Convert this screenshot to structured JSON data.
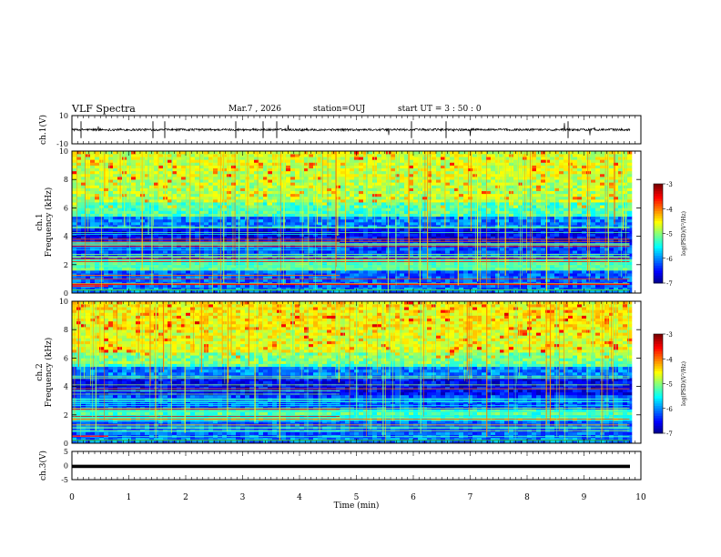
{
  "header": {
    "title": "VLF Spectra",
    "date": "Mar.7 , 2026",
    "station": "station=OUJ",
    "start_ut": "start UT =  3 : 50 : 0"
  },
  "chart_data": [
    {
      "type": "line",
      "name": "ch1-waveform",
      "ylabel": "ch.1(V)",
      "ylim": [
        -10,
        10
      ],
      "yticks": [
        "10",
        "-10"
      ],
      "xlim": [
        0,
        10
      ]
    },
    {
      "type": "heatmap",
      "name": "ch1-spectrogram",
      "ylabel_line1": "ch.1",
      "ylabel_line2": "Frequency (kHz)",
      "ylim": [
        0,
        10
      ],
      "yticks": [
        "0",
        "2",
        "4",
        "6",
        "8",
        "10"
      ],
      "xlim": [
        0,
        9.8
      ],
      "colorbar": {
        "label": "log(PSD)(V²/Hz)",
        "range": [
          -7,
          -3
        ],
        "ticks": [
          "-3",
          "-4",
          "-5",
          "-6",
          "-7"
        ]
      }
    },
    {
      "type": "heatmap",
      "name": "ch2-spectrogram",
      "ylabel_line1": "ch.2",
      "ylabel_line2": "Frequency (kHz)",
      "ylim": [
        0,
        10
      ],
      "yticks": [
        "0",
        "2",
        "4",
        "6",
        "8",
        "10"
      ],
      "xlim": [
        0,
        9.8
      ],
      "colorbar": {
        "label": "log(PSD)(V²/Hz)",
        "range": [
          -7,
          -3
        ],
        "ticks": [
          "-3",
          "-4",
          "-5",
          "-6",
          "-7"
        ]
      }
    },
    {
      "type": "line",
      "name": "ch3-waveform",
      "ylabel": "ch.3(V)",
      "ylim": [
        -5,
        5
      ],
      "yticks": [
        "5",
        "0",
        "-5"
      ],
      "xlim": [
        0,
        10
      ],
      "constant_level": -0.3,
      "xlabel": "Time (min)",
      "xticks": [
        "0",
        "1",
        "2",
        "3",
        "4",
        "5",
        "6",
        "7",
        "8",
        "9",
        "10"
      ]
    }
  ],
  "colors": {
    "low": "#00007f",
    "mid": "#00ffff",
    "high": "#ff0000"
  }
}
